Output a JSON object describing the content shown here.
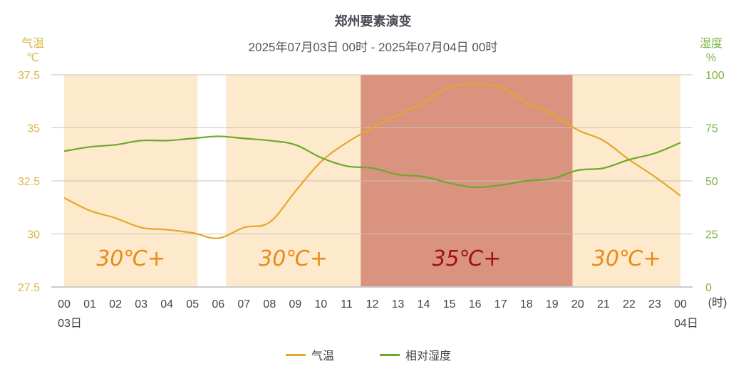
{
  "header": {
    "title": "郑州要素演变",
    "subtitle": "2025年07月03日 00时 - 2025年07月04日 00时"
  },
  "axes": {
    "left_title_line1": "气温",
    "left_title_line2": "℃",
    "right_title_line1": "湿度",
    "right_title_line2": "%",
    "x_unit": "(时)",
    "left_ticks": [
      "37.5",
      "35",
      "32.5",
      "30",
      "27.5"
    ],
    "right_ticks": [
      "100",
      "75",
      "50",
      "25",
      "0"
    ],
    "x_ticks": [
      "00",
      "01",
      "02",
      "03",
      "04",
      "05",
      "06",
      "07",
      "08",
      "09",
      "10",
      "11",
      "12",
      "13",
      "14",
      "15",
      "16",
      "17",
      "18",
      "19",
      "20",
      "21",
      "22",
      "23",
      "00"
    ],
    "x_date_start": "03日",
    "x_date_end": "04日"
  },
  "colors": {
    "temperature": "#e5a82a",
    "humidity": "#6aaa2a",
    "band_30": "#fde9cc",
    "band_35": "#d9937e",
    "band_30_text": "#ea8a14",
    "band_35_text": "#a10f0f",
    "left_axis": "#d9b84a",
    "right_axis": "#7cb342"
  },
  "bands": [
    {
      "label": "30℃+",
      "start_hour": 0,
      "end_hour": 5.2,
      "level": "30"
    },
    {
      "label": "30℃+",
      "start_hour": 6.3,
      "end_hour": 11.55,
      "level": "30"
    },
    {
      "label": "35℃+",
      "start_hour": 11.55,
      "end_hour": 19.8,
      "level": "35"
    },
    {
      "label": "30℃+",
      "start_hour": 19.8,
      "end_hour": 24,
      "level": "30"
    }
  ],
  "legend": [
    {
      "label": "气温",
      "color": "#e5a82a"
    },
    {
      "label": "相对湿度",
      "color": "#6aaa2a"
    }
  ],
  "chart_data": {
    "type": "line",
    "title": "郑州要素演变",
    "subtitle": "2025年07月03日 00时 - 2025年07月04日 00时",
    "xlabel": "(时)",
    "ylabel_left": "气温 ℃",
    "ylabel_right": "湿度 %",
    "ylim_left": [
      27.5,
      37.5
    ],
    "ylim_right": [
      0,
      100
    ],
    "grid": true,
    "legend_position": "bottom",
    "x": [
      "03日00",
      "01",
      "02",
      "03",
      "04",
      "05",
      "06",
      "07",
      "08",
      "09",
      "10",
      "11",
      "12",
      "13",
      "14",
      "15",
      "16",
      "17",
      "18",
      "19",
      "20",
      "21",
      "22",
      "23",
      "04日00"
    ],
    "series": [
      {
        "name": "气温",
        "axis": "left",
        "unit": "℃",
        "values": [
          31.7,
          31.1,
          30.75,
          30.3,
          30.2,
          30.05,
          29.8,
          30.3,
          30.55,
          32.0,
          33.4,
          34.3,
          35.0,
          35.6,
          36.2,
          36.9,
          37.05,
          36.9,
          36.2,
          35.65,
          34.9,
          34.4,
          33.5,
          32.7,
          31.8
        ]
      },
      {
        "name": "相对湿度",
        "axis": "right",
        "unit": "%",
        "values": [
          64,
          66,
          67,
          69,
          69,
          70,
          71,
          70,
          69,
          67,
          61,
          57,
          56,
          53,
          52,
          49,
          47,
          48,
          50,
          51,
          55,
          56,
          60,
          63,
          68
        ]
      }
    ],
    "annotations": [
      {
        "text": "30℃+",
        "range_hours": [
          0,
          5.2
        ]
      },
      {
        "text": "30℃+",
        "range_hours": [
          6.3,
          11.55
        ]
      },
      {
        "text": "35℃+",
        "range_hours": [
          11.55,
          19.8
        ]
      },
      {
        "text": "30℃+",
        "range_hours": [
          19.8,
          24
        ]
      }
    ]
  }
}
